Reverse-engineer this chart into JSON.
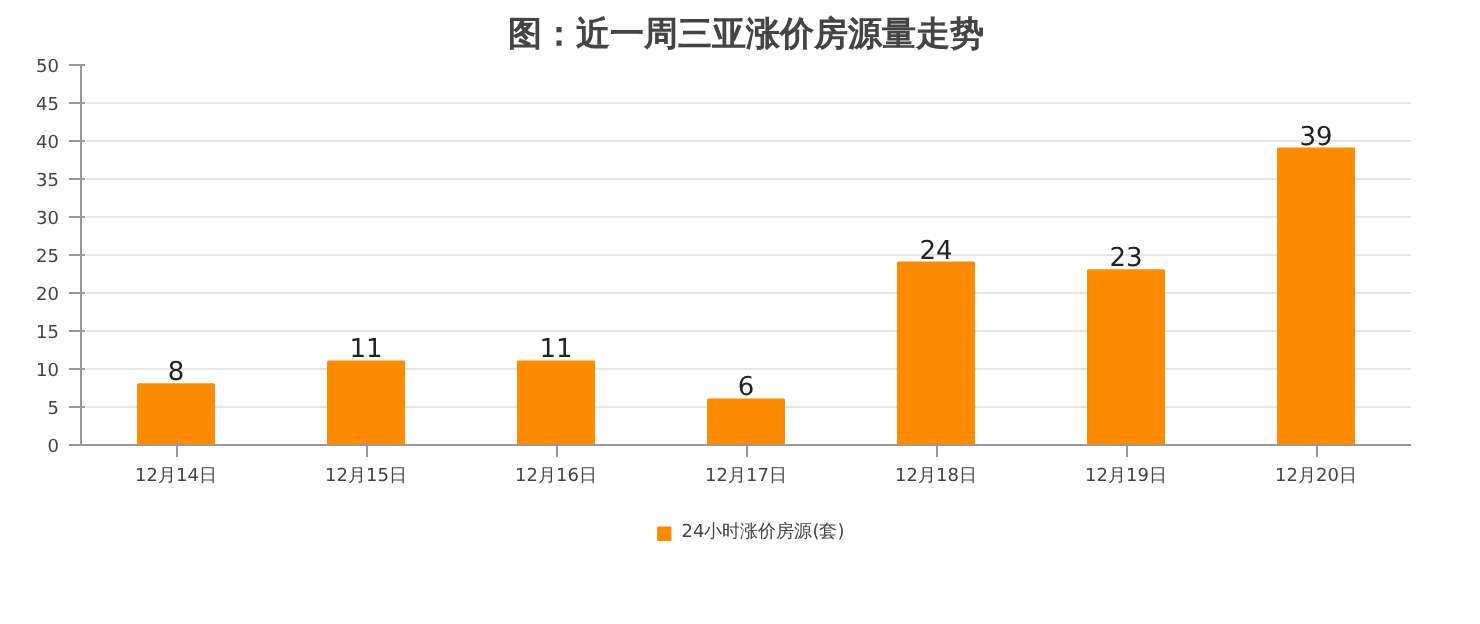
{
  "chart_data": {
    "type": "bar",
    "title": "图：近一周三亚涨价房源量走势",
    "categories": [
      "12月14日",
      "12月15日",
      "12月16日",
      "12月17日",
      "12月18日",
      "12月19日",
      "12月20日"
    ],
    "series": [
      {
        "name": "24小时涨价房源(套)",
        "color": "#ff8c00",
        "values": [
          8,
          11,
          11,
          6,
          24,
          23,
          39
        ]
      }
    ],
    "ylim": [
      0,
      50
    ],
    "yticks": [
      0,
      5,
      10,
      15,
      20,
      25,
      30,
      35,
      40,
      45,
      50
    ],
    "grid": "y",
    "legend": "bottom",
    "data_labels": true
  }
}
